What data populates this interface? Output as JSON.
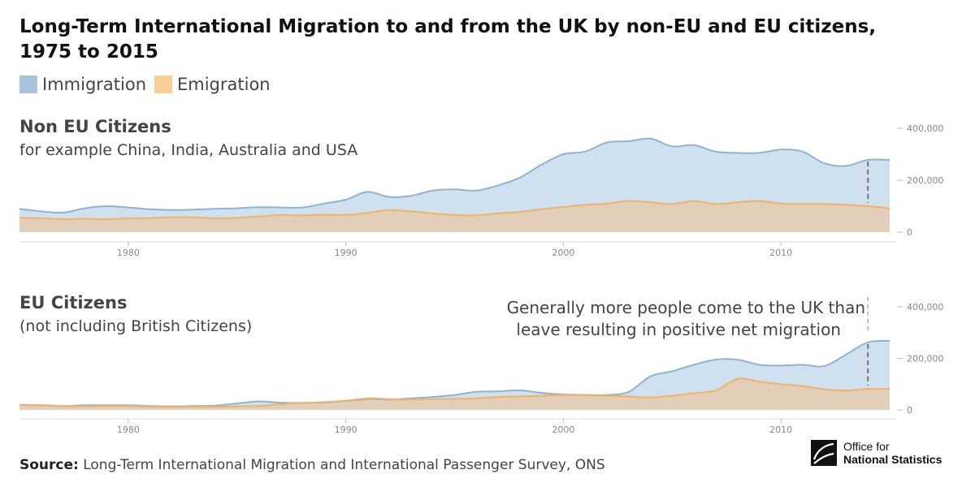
{
  "title_line1": "Long-Term International Migration to and from the UK by non-EU and EU citizens,",
  "title_line2": "1975 to 2015",
  "colors": {
    "immigration": "#cfe0ef",
    "immigration_line": "#8fb3d6",
    "emigration": "#e2cfb9",
    "emigration_line": "#f2b266",
    "legend_imm": "#a7c3de",
    "legend_emi": "#f9cd96"
  },
  "legend": {
    "immigration": "Immigration",
    "emigration": "Emigration"
  },
  "source": {
    "label": "Source:",
    "text": " Long-Term International Migration and International Passenger Survey, ONS"
  },
  "logo": {
    "line1": "Office for",
    "line2": "National Statistics"
  },
  "chart_data": [
    {
      "type": "area",
      "title": "Non EU Citizens",
      "subtitle": "for example China, India, Australia and USA",
      "x": [
        1975,
        1976,
        1977,
        1978,
        1979,
        1980,
        1981,
        1982,
        1983,
        1984,
        1985,
        1986,
        1987,
        1988,
        1989,
        1990,
        1991,
        1992,
        1993,
        1994,
        1995,
        1996,
        1997,
        1998,
        1999,
        2000,
        2001,
        2002,
        2003,
        2004,
        2005,
        2006,
        2007,
        2008,
        2009,
        2010,
        2011,
        2012,
        2013,
        2014,
        2015
      ],
      "xlim": [
        1975,
        2015.3
      ],
      "ylim": [
        0,
        400000
      ],
      "yticks": [
        0,
        200000,
        400000
      ],
      "ytick_labels": [
        "0",
        "200,000",
        "400,000"
      ],
      "xticks": [
        1980,
        1990,
        2000,
        2010
      ],
      "xtick_labels": [
        "1980",
        "1990",
        "2000",
        "2010"
      ],
      "series": [
        {
          "name": "Immigration",
          "values": [
            90000,
            80000,
            75000,
            92000,
            100000,
            95000,
            88000,
            85000,
            87000,
            90000,
            92000,
            96000,
            95000,
            95000,
            110000,
            125000,
            155000,
            135000,
            140000,
            160000,
            165000,
            160000,
            180000,
            210000,
            260000,
            300000,
            310000,
            345000,
            350000,
            360000,
            330000,
            335000,
            310000,
            305000,
            305000,
            318000,
            310000,
            265000,
            255000,
            278000,
            278000
          ]
        },
        {
          "name": "Emigration",
          "values": [
            55000,
            53000,
            50000,
            52000,
            50000,
            53000,
            54000,
            57000,
            57000,
            53000,
            55000,
            60000,
            66000,
            64000,
            67000,
            66000,
            74000,
            85000,
            80000,
            72000,
            66000,
            65000,
            72000,
            78000,
            88000,
            97000,
            105000,
            110000,
            120000,
            115000,
            108000,
            120000,
            108000,
            115000,
            120000,
            110000,
            108000,
            108000,
            105000,
            100000,
            92000
          ]
        }
      ],
      "marker": {
        "x": 2014
      }
    },
    {
      "type": "area",
      "title": "EU Citizens",
      "subtitle": "(not including British Citizens)",
      "annotation_line1": "Generally more people come to the UK than",
      "annotation_line2": "leave resulting in positive net migration",
      "x": [
        1975,
        1976,
        1977,
        1978,
        1979,
        1980,
        1981,
        1982,
        1983,
        1984,
        1985,
        1986,
        1987,
        1988,
        1989,
        1990,
        1991,
        1992,
        1993,
        1994,
        1995,
        1996,
        1997,
        1998,
        1999,
        2000,
        2001,
        2002,
        2003,
        2004,
        2005,
        2006,
        2007,
        2008,
        2009,
        2010,
        2011,
        2012,
        2013,
        2014,
        2015
      ],
      "xlim": [
        1975,
        2015.3
      ],
      "ylim": [
        0,
        400000
      ],
      "yticks": [
        0,
        200000,
        400000
      ],
      "ytick_labels": [
        "0",
        "200,000",
        "400,000"
      ],
      "xticks": [
        1980,
        1990,
        2000,
        2010
      ],
      "xtick_labels": [
        "1980",
        "1990",
        "2000",
        "2010"
      ],
      "series": [
        {
          "name": "Immigration",
          "values": [
            20000,
            18000,
            15000,
            18000,
            18000,
            18000,
            15000,
            14000,
            15000,
            17000,
            25000,
            33000,
            28000,
            27000,
            30000,
            35000,
            42000,
            40000,
            45000,
            50000,
            58000,
            70000,
            72000,
            76000,
            66000,
            60000,
            58000,
            58000,
            70000,
            130000,
            150000,
            175000,
            195000,
            195000,
            175000,
            172000,
            175000,
            170000,
            215000,
            262000,
            268000
          ]
        },
        {
          "name": "Emigration",
          "values": [
            18000,
            18000,
            15000,
            14000,
            15000,
            15000,
            12000,
            12000,
            12000,
            12000,
            14000,
            15000,
            22000,
            27000,
            28000,
            35000,
            45000,
            42000,
            40000,
            42000,
            43000,
            45000,
            50000,
            52000,
            55000,
            58000,
            56000,
            55000,
            52000,
            48000,
            55000,
            65000,
            75000,
            120000,
            110000,
            100000,
            92000,
            80000,
            75000,
            82000,
            82000
          ]
        }
      ],
      "marker": {
        "x": 2014
      }
    }
  ]
}
